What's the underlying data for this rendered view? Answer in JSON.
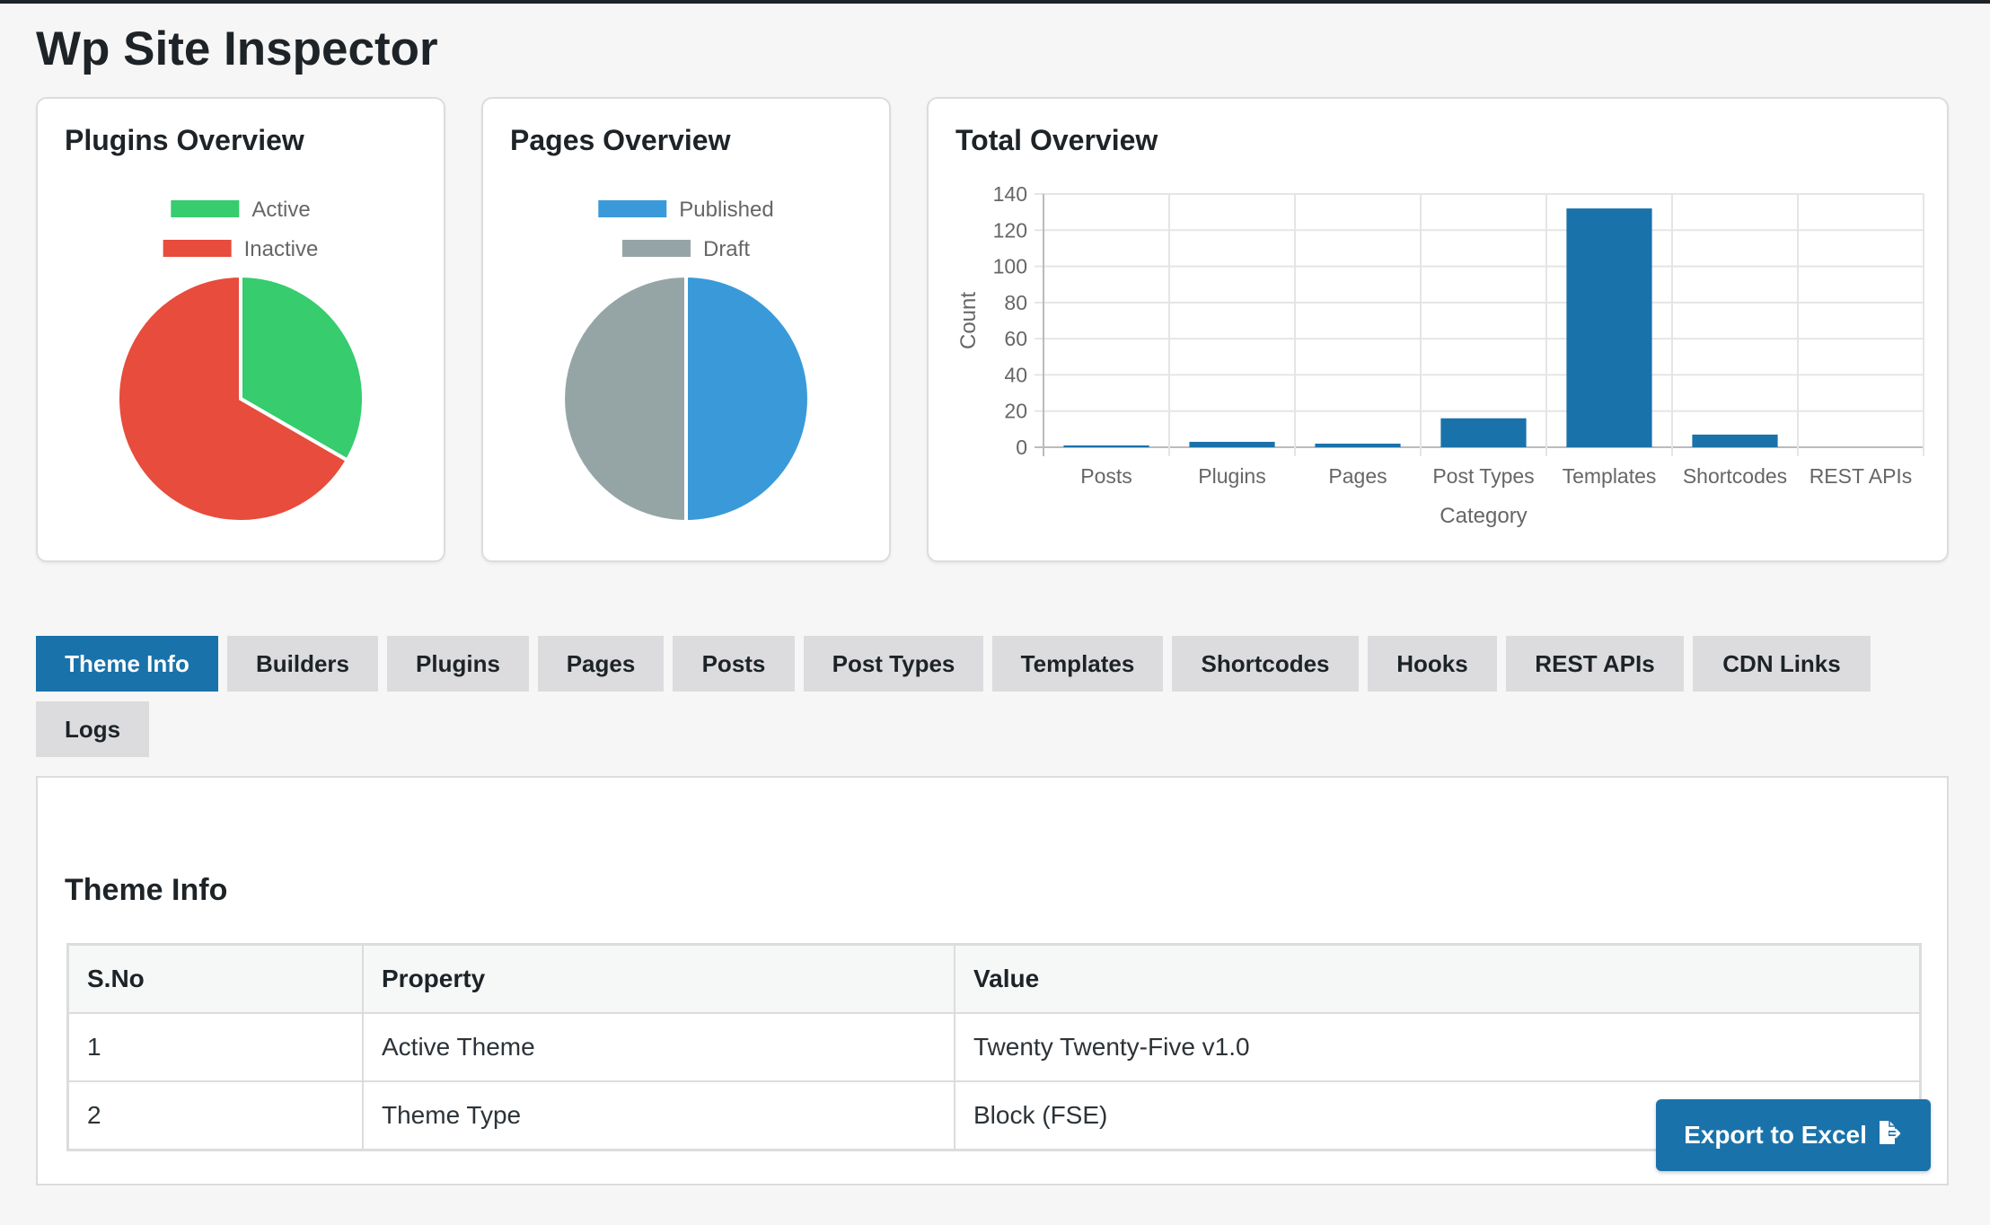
{
  "page": {
    "title": "Wp Site Inspector"
  },
  "charts": {
    "plugins": {
      "title": "Plugins Overview"
    },
    "pages": {
      "title": "Pages Overview"
    },
    "total": {
      "title": "Total Overview"
    }
  },
  "chart_data": [
    {
      "type": "pie",
      "title": "Plugins Overview",
      "labels": [
        "Active",
        "Inactive"
      ],
      "values": [
        1,
        2
      ],
      "colors": [
        "#37cc6e",
        "#e74c3c"
      ],
      "legend": "top"
    },
    {
      "type": "pie",
      "title": "Pages Overview",
      "labels": [
        "Published",
        "Draft"
      ],
      "values": [
        1,
        1
      ],
      "colors": [
        "#3a9ad9",
        "#95a5a6"
      ],
      "legend": "top"
    },
    {
      "type": "bar",
      "title": "Total Overview",
      "categories": [
        "Posts",
        "Plugins",
        "Pages",
        "Post Types",
        "Templates",
        "Shortcodes",
        "REST APIs"
      ],
      "values": [
        1,
        3,
        2,
        16,
        132,
        7,
        0
      ],
      "xlabel": "Category",
      "ylabel": "Count",
      "ylim": [
        0,
        140
      ],
      "yticks": [
        0,
        20,
        40,
        60,
        80,
        100,
        120,
        140
      ],
      "grid": true,
      "color": "#1a72aa"
    }
  ],
  "tabs": [
    {
      "label": "Theme Info",
      "active": true
    },
    {
      "label": "Builders"
    },
    {
      "label": "Plugins"
    },
    {
      "label": "Pages"
    },
    {
      "label": "Posts"
    },
    {
      "label": "Post Types"
    },
    {
      "label": "Templates"
    },
    {
      "label": "Shortcodes"
    },
    {
      "label": "Hooks"
    },
    {
      "label": "REST APIs"
    },
    {
      "label": "CDN Links"
    },
    {
      "label": "Logs"
    }
  ],
  "panel": {
    "title": "Theme Info",
    "table": {
      "headers": [
        "S.No",
        "Property",
        "Value"
      ],
      "rows": [
        [
          "1",
          "Active Theme",
          "Twenty Twenty-Five v1.0"
        ],
        [
          "2",
          "Theme Type",
          "Block (FSE)"
        ]
      ]
    }
  },
  "export": {
    "label": "Export to Excel",
    "icon": "file-export-icon"
  }
}
